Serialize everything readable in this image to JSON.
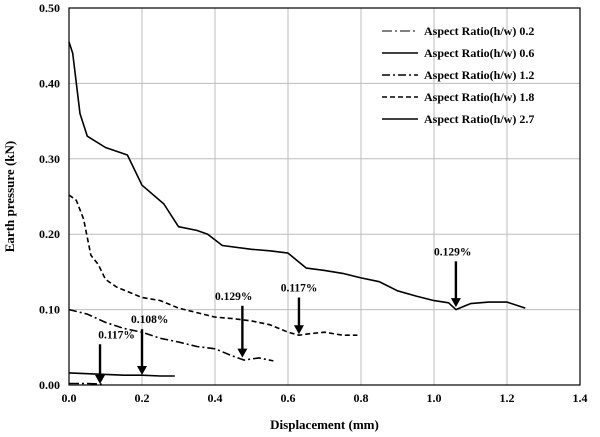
{
  "chart_data": {
    "type": "line",
    "xlabel": "Displacement  (mm)",
    "ylabel": "Earth pressure  (kN)",
    "xlim": [
      0,
      1.4
    ],
    "ylim": [
      0,
      0.5
    ],
    "x_ticks": [
      "0.0",
      "0.2",
      "0.4",
      "0.6",
      "0.8",
      "1.0",
      "1.2",
      "1.4"
    ],
    "y_ticks": [
      "0.00",
      "0.10",
      "0.20",
      "0.30",
      "0.40",
      "0.50"
    ],
    "grid": true,
    "legend_position": "top-right",
    "series": [
      {
        "name": "Aspect Ratio(h/w) 0.2",
        "dash": "dashdot-long",
        "points": [
          [
            0.0,
            0.002
          ],
          [
            0.05,
            0.002
          ],
          [
            0.09,
            0.001
          ]
        ]
      },
      {
        "name": "Aspect Ratio(h/w) 0.6",
        "dash": "solid",
        "points": [
          [
            0.0,
            0.016
          ],
          [
            0.05,
            0.015
          ],
          [
            0.1,
            0.014
          ],
          [
            0.15,
            0.013
          ],
          [
            0.2,
            0.013
          ],
          [
            0.25,
            0.012
          ],
          [
            0.29,
            0.012
          ]
        ]
      },
      {
        "name": "Aspect Ratio(h/w) 1.2",
        "dash": "dashdot",
        "points": [
          [
            0.0,
            0.1
          ],
          [
            0.05,
            0.094
          ],
          [
            0.1,
            0.083
          ],
          [
            0.15,
            0.075
          ],
          [
            0.2,
            0.07
          ],
          [
            0.25,
            0.062
          ],
          [
            0.3,
            0.057
          ],
          [
            0.35,
            0.051
          ],
          [
            0.4,
            0.048
          ],
          [
            0.45,
            0.038
          ],
          [
            0.48,
            0.033
          ],
          [
            0.52,
            0.036
          ],
          [
            0.56,
            0.032
          ]
        ]
      },
      {
        "name": "Aspect Ratio(h/w) 1.8",
        "dash": "dashed",
        "points": [
          [
            0.0,
            0.252
          ],
          [
            0.02,
            0.245
          ],
          [
            0.04,
            0.22
          ],
          [
            0.06,
            0.172
          ],
          [
            0.08,
            0.16
          ],
          [
            0.1,
            0.14
          ],
          [
            0.13,
            0.13
          ],
          [
            0.2,
            0.116
          ],
          [
            0.25,
            0.112
          ],
          [
            0.3,
            0.102
          ],
          [
            0.35,
            0.096
          ],
          [
            0.4,
            0.09
          ],
          [
            0.45,
            0.088
          ],
          [
            0.5,
            0.085
          ],
          [
            0.55,
            0.08
          ],
          [
            0.6,
            0.07
          ],
          [
            0.63,
            0.066
          ],
          [
            0.66,
            0.068
          ],
          [
            0.7,
            0.07
          ],
          [
            0.75,
            0.066
          ],
          [
            0.79,
            0.066
          ]
        ]
      },
      {
        "name": "Aspect Ratio(h/w) 2.7",
        "dash": "solid",
        "points": [
          [
            0.0,
            0.455
          ],
          [
            0.01,
            0.44
          ],
          [
            0.03,
            0.36
          ],
          [
            0.05,
            0.33
          ],
          [
            0.1,
            0.315
          ],
          [
            0.16,
            0.305
          ],
          [
            0.2,
            0.265
          ],
          [
            0.26,
            0.24
          ],
          [
            0.3,
            0.21
          ],
          [
            0.35,
            0.205
          ],
          [
            0.38,
            0.2
          ],
          [
            0.42,
            0.185
          ],
          [
            0.5,
            0.18
          ],
          [
            0.55,
            0.178
          ],
          [
            0.6,
            0.175
          ],
          [
            0.65,
            0.155
          ],
          [
            0.7,
            0.152
          ],
          [
            0.75,
            0.148
          ],
          [
            0.8,
            0.142
          ],
          [
            0.85,
            0.137
          ],
          [
            0.9,
            0.125
          ],
          [
            0.95,
            0.118
          ],
          [
            1.0,
            0.112
          ],
          [
            1.04,
            0.109
          ],
          [
            1.06,
            0.1
          ],
          [
            1.1,
            0.108
          ],
          [
            1.15,
            0.11
          ],
          [
            1.2,
            0.11
          ],
          [
            1.25,
            0.102
          ]
        ]
      }
    ],
    "annotations": [
      {
        "text": "0.117%",
        "x": 0.085,
        "y": 0.0,
        "label_x": 0.08,
        "label_y": 0.062
      },
      {
        "text": "0.108%",
        "x": 0.2,
        "y": 0.012,
        "label_x": 0.17,
        "label_y": 0.082
      },
      {
        "text": "0.129%",
        "x": 0.475,
        "y": 0.035,
        "label_x": 0.4,
        "label_y": 0.113
      },
      {
        "text": "0.117%",
        "x": 0.63,
        "y": 0.066,
        "label_x": 0.58,
        "label_y": 0.124
      },
      {
        "text": "0.129%",
        "x": 1.06,
        "y": 0.102,
        "label_x": 1.0,
        "label_y": 0.172
      }
    ]
  }
}
